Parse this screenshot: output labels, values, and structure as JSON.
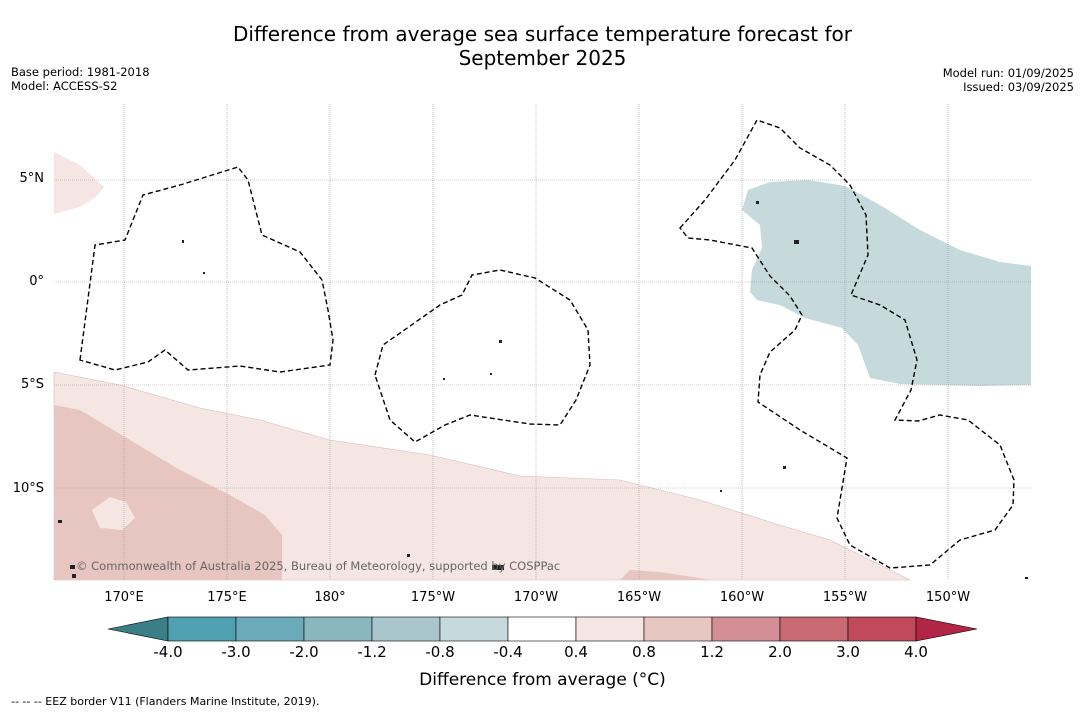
{
  "title_line1": "Difference from average sea surface temperature forecast for",
  "title_line2": "September 2025",
  "meta_left": {
    "base_period": "Base period: 1981-2018",
    "model": "Model: ACCESS-S2"
  },
  "meta_right": {
    "model_run": "Model run: 01/09/2025",
    "issued": "Issued: 03/09/2025"
  },
  "map": {
    "lat_labels": [
      "5°N",
      "0°",
      "5°S",
      "10°S"
    ],
    "lon_labels": [
      "170°E",
      "175°E",
      "180°",
      "175°W",
      "170°W",
      "165°W",
      "160°W",
      "155°W",
      "150°W"
    ],
    "credit": "© Commonwealth of Australia 2025, Bureau of Meteorology, supported by COSPPac"
  },
  "colorbar": {
    "ticks": [
      "-4.0",
      "-3.0",
      "-2.0",
      "-1.2",
      "-0.8",
      "-0.4",
      "0.4",
      "0.8",
      "1.2",
      "2.0",
      "3.0",
      "4.0"
    ],
    "colors": {
      "below_min": "#3a7f87",
      "bins": [
        "#4fa0b0",
        "#6aaab9",
        "#8ab6c0",
        "#a9c6cc",
        "#c6d9dd",
        "#ffffff",
        "#f5e6e4",
        "#e7c6c1",
        "#d48e95",
        "#c96a73",
        "#c04a5a"
      ],
      "above_max": "#b22645"
    },
    "label": "Difference from average (°C)"
  },
  "legend_footnote": "--  --  -- EEZ border V11 (Flanders Marine Institute, 2019)."
}
